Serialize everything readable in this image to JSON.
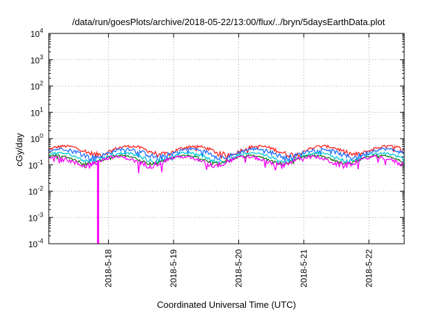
{
  "chart_data": {
    "type": "line",
    "title": "/data/run/goesPlots/archive/2018-05-22/13:00/flux/../bryn/5daysEarthData.plot",
    "xlabel": "Coordinated Universal Time (UTC)",
    "ylabel": "cGy/day",
    "yscale": "log",
    "ylim": [
      0.0001,
      10000
    ],
    "yticks": [
      {
        "value": 0.0001,
        "base": "10",
        "exp": "-4"
      },
      {
        "value": 0.001,
        "base": "10",
        "exp": "-3"
      },
      {
        "value": 0.01,
        "base": "10",
        "exp": "-2"
      },
      {
        "value": 0.1,
        "base": "10",
        "exp": "-1"
      },
      {
        "value": 1,
        "base": "10",
        "exp": "0"
      },
      {
        "value": 10,
        "base": "10",
        "exp": "1"
      },
      {
        "value": 100,
        "base": "10",
        "exp": "2"
      },
      {
        "value": 1000,
        "base": "10",
        "exp": "3"
      },
      {
        "value": 10000,
        "base": "10",
        "exp": "4"
      }
    ],
    "xlim": [
      "2018-05-17 02:00",
      "2018-05-22 13:00"
    ],
    "xticks": [
      {
        "label": "2018-5-18",
        "value": "2018-05-18"
      },
      {
        "label": "2018-5-19",
        "value": "2018-05-19"
      },
      {
        "label": "2018-5-20",
        "value": "2018-05-20"
      },
      {
        "label": "2018-5-21",
        "value": "2018-05-21"
      },
      {
        "label": "2018-5-22",
        "value": "2018-05-22"
      }
    ],
    "grid": true,
    "legend": "none",
    "series": [
      {
        "color": "#ff2020",
        "base": 0.38,
        "amp": 0.12,
        "dip_depth": 0.35
      },
      {
        "color": "#1e6bff",
        "base": 0.3,
        "amp": 0.1,
        "dip_depth": 0.4
      },
      {
        "color": "#00c8d8",
        "base": 0.21,
        "amp": 0.05,
        "dip_depth": 0.3
      },
      {
        "color": "#1a7a1a",
        "base": 0.17,
        "amp": 0.03,
        "dip_depth": 0.25
      },
      {
        "color": "#ff00ff",
        "base": 0.15,
        "amp": 0.05,
        "dip_depth": 0.6
      }
    ],
    "magenta_spike": {
      "x": "2018-05-17 20:10",
      "value": 0.0001
    }
  }
}
